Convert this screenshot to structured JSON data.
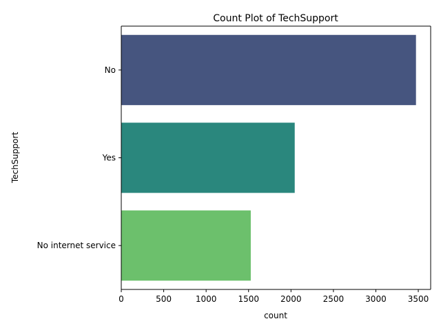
{
  "chart_data": {
    "type": "bar",
    "orientation": "horizontal",
    "title": "Count Plot of TechSupport",
    "xlabel": "count",
    "ylabel": "TechSupport",
    "categories": [
      "No",
      "Yes",
      "No internet service"
    ],
    "values": [
      3473,
      2044,
      1526
    ],
    "colors": [
      "#46557f",
      "#2a877d",
      "#6cc06c"
    ],
    "xlim": [
      0,
      3646
    ],
    "xticks": [
      0,
      500,
      1000,
      1500,
      2000,
      2500,
      3000,
      3500
    ],
    "grid": false,
    "legend": "none"
  }
}
